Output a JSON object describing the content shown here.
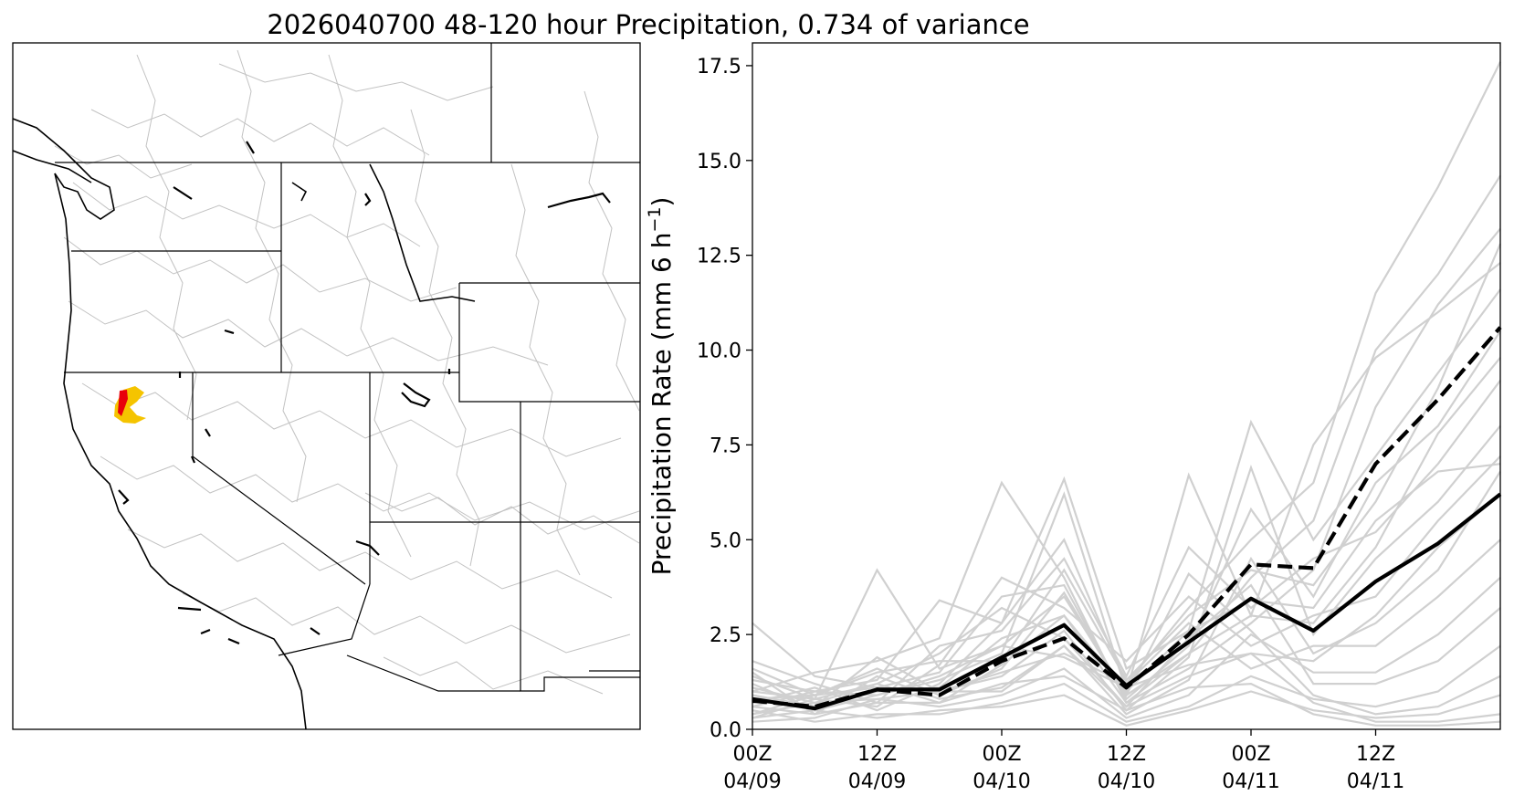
{
  "figure": {
    "title": "2026040700 48-120 hour Precipitation, 0.734 of variance"
  },
  "map_panel": {
    "highlight_colors": {
      "outer": "#f5c400",
      "inner": "#e8000b"
    },
    "border_color": "#000000",
    "basin_color": "#c2c2c2"
  },
  "chart_data": {
    "type": "line",
    "title": "",
    "ylabel_main": "Precipitation Rate (mm 6 h",
    "ylabel_sup": "−1",
    "ylabel_close": ")",
    "ylim": [
      0,
      18.1
    ],
    "yticks": [
      "0.0",
      "2.5",
      "5.0",
      "7.5",
      "10.0",
      "12.5",
      "15.0",
      "17.5"
    ],
    "x_steps": 13,
    "xtick_positions": [
      0,
      2,
      4,
      6,
      8,
      10
    ],
    "xtick_labels": [
      [
        "00Z",
        "04/09"
      ],
      [
        "12Z",
        "04/09"
      ],
      [
        "00Z",
        "04/10"
      ],
      [
        "12Z",
        "04/10"
      ],
      [
        "00Z",
        "04/11"
      ],
      [
        "12Z",
        "04/11"
      ]
    ],
    "grid": false,
    "series": [
      {
        "style": "solid-black",
        "color": "#000000",
        "values": [
          0.8,
          0.55,
          1.05,
          1.05,
          1.9,
          2.75,
          1.15,
          2.3,
          3.45,
          2.6,
          3.9,
          4.9,
          6.2
        ]
      },
      {
        "style": "dashed-black",
        "color": "#000000",
        "values": [
          0.75,
          0.6,
          1.05,
          0.9,
          1.8,
          2.4,
          1.1,
          2.5,
          4.35,
          4.25,
          7.0,
          8.7,
          10.6
        ]
      }
    ],
    "members_color": "#d0d0d0",
    "members": [
      [
        2.8,
        1.4,
        1.1,
        1.0,
        1.5,
        2.0,
        1.2,
        3.2,
        5.0,
        6.5,
        11.5,
        14.3,
        17.6
      ],
      [
        1.4,
        0.8,
        4.2,
        1.6,
        2.2,
        3.5,
        0.9,
        2.0,
        4.0,
        5.5,
        10.0,
        12.0,
        14.6
      ],
      [
        1.0,
        1.5,
        1.8,
        2.4,
        6.5,
        4.0,
        0.7,
        1.6,
        2.8,
        4.2,
        8.5,
        11.2,
        13.2
      ],
      [
        0.6,
        1.0,
        1.3,
        3.4,
        2.8,
        6.6,
        1.6,
        2.6,
        8.1,
        5.0,
        7.2,
        9.4,
        11.6
      ],
      [
        1.2,
        0.5,
        0.9,
        1.3,
        2.0,
        6.2,
        1.0,
        6.7,
        3.0,
        7.5,
        9.8,
        11.0,
        12.3
      ],
      [
        0.4,
        0.9,
        1.1,
        1.5,
        3.5,
        3.8,
        0.8,
        2.2,
        5.8,
        3.5,
        6.5,
        8.0,
        10.5
      ],
      [
        1.8,
        1.2,
        0.7,
        2.2,
        2.6,
        4.5,
        1.4,
        4.8,
        3.2,
        4.5,
        5.2,
        7.0,
        9.2
      ],
      [
        0.9,
        0.6,
        1.9,
        1.0,
        1.4,
        2.6,
        0.5,
        1.9,
        6.9,
        2.5,
        4.5,
        6.0,
        8.0
      ],
      [
        0.3,
        0.8,
        0.6,
        1.7,
        4.0,
        3.2,
        1.8,
        3.5,
        2.2,
        3.0,
        3.5,
        5.5,
        7.2
      ],
      [
        1.5,
        0.4,
        1.4,
        0.8,
        1.1,
        2.2,
        0.4,
        1.3,
        4.5,
        2.0,
        2.8,
        4.2,
        6.8
      ],
      [
        0.7,
        1.1,
        0.5,
        1.2,
        2.8,
        5.0,
        1.2,
        2.8,
        1.6,
        2.2,
        2.2,
        3.5,
        5.0
      ],
      [
        0.2,
        0.3,
        0.8,
        0.6,
        0.9,
        1.6,
        0.3,
        0.9,
        2.5,
        1.5,
        1.5,
        2.5,
        4.0
      ],
      [
        1.1,
        0.7,
        1.2,
        2.0,
        3.2,
        2.4,
        0.6,
        2.4,
        3.8,
        1.2,
        1.2,
        1.8,
        3.2
      ],
      [
        0.5,
        0.2,
        0.4,
        0.4,
        0.7,
        1.2,
        0.2,
        0.6,
        1.4,
        0.8,
        0.6,
        1.0,
        2.2
      ],
      [
        0.8,
        0.9,
        1.6,
        0.9,
        1.6,
        3.6,
        0.9,
        4.1,
        2.6,
        0.9,
        0.4,
        0.6,
        1.4
      ],
      [
        0.3,
        0.5,
        0.3,
        0.5,
        0.6,
        0.9,
        0.1,
        0.5,
        1.0,
        0.5,
        0.3,
        0.4,
        0.9
      ],
      [
        1.3,
        1.0,
        0.9,
        1.4,
        2.2,
        1.9,
        1.1,
        1.7,
        2.0,
        0.7,
        0.2,
        0.2,
        0.4
      ],
      [
        0.6,
        0.4,
        0.7,
        0.7,
        1.2,
        1.4,
        0.5,
        1.1,
        1.2,
        0.4,
        0.1,
        0.1,
        0.2
      ],
      [
        0.9,
        0.6,
        1.0,
        1.1,
        2.4,
        3.0,
        0.7,
        2.0,
        3.0,
        2.8,
        4.8,
        7.8,
        9.8
      ],
      [
        1.6,
        0.9,
        1.5,
        1.8,
        1.8,
        4.2,
        1.3,
        3.0,
        4.2,
        3.8,
        6.0,
        9.0,
        12.8
      ],
      [
        0.4,
        0.7,
        0.8,
        1.0,
        1.0,
        2.2,
        0.6,
        1.4,
        2.0,
        1.8,
        3.0,
        4.8,
        6.2
      ],
      [
        1.0,
        0.8,
        1.2,
        0.7,
        1.7,
        3.0,
        1.0,
        2.6,
        3.4,
        3.2,
        5.5,
        6.8,
        7.0
      ]
    ]
  }
}
